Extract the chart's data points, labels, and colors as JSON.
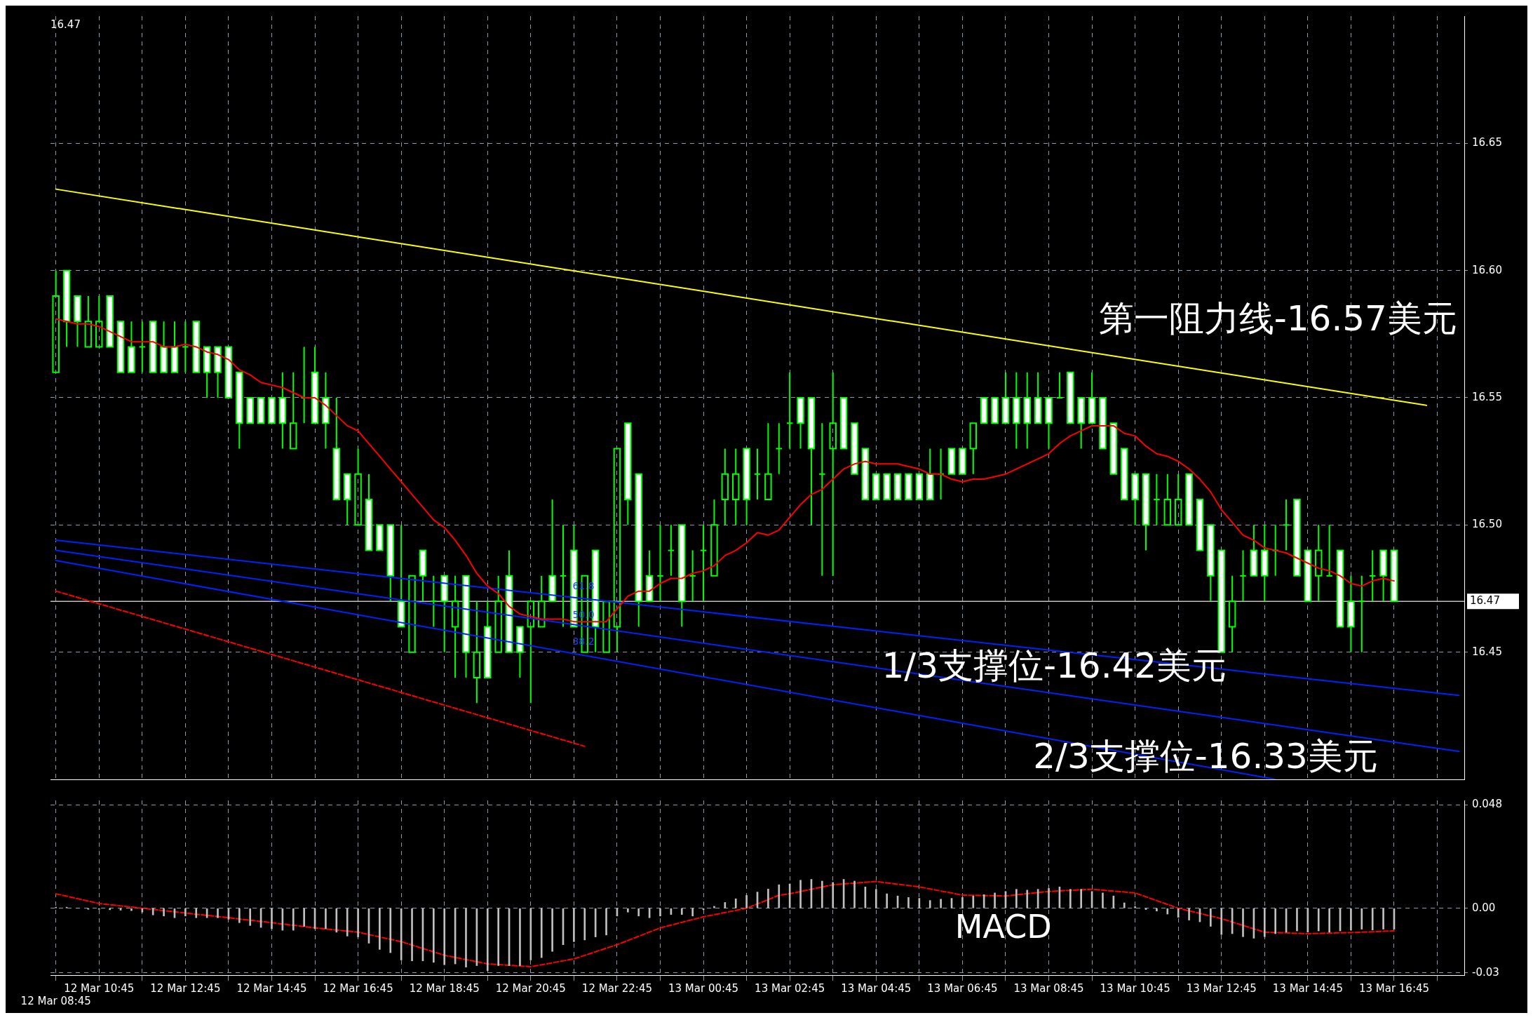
{
  "chart_data": [
    {
      "type": "candlestick",
      "color": "#00ff00",
      "tick_labels": "y",
      "grid": true,
      "categories": [
        null,
        null,
        null,
        null,
        null,
        null,
        null,
        null,
        null,
        null,
        null,
        null,
        null,
        null,
        null,
        null,
        null,
        null,
        null,
        null,
        null,
        null,
        null,
        null,
        null,
        null,
        null,
        null,
        null,
        null,
        null,
        null,
        null,
        null,
        null,
        null,
        null,
        null,
        null,
        null,
        null,
        null,
        null,
        null,
        null,
        null,
        null,
        null,
        null,
        null,
        null,
        null,
        null,
        null,
        null,
        null,
        null,
        null,
        null,
        null,
        null,
        null,
        null,
        null,
        null,
        null,
        null,
        null,
        null,
        null,
        null,
        null,
        null,
        null,
        null,
        null,
        null,
        null,
        null,
        null,
        null,
        null,
        null,
        null,
        null,
        null,
        null,
        null,
        null,
        null,
        null,
        null,
        null,
        null,
        null,
        null,
        null,
        null,
        null,
        null,
        null,
        null,
        null,
        null,
        null,
        null,
        null,
        null,
        null,
        null,
        null,
        null,
        null,
        null,
        null,
        null,
        null,
        null,
        null,
        null,
        null,
        null,
        null,
        null,
        null,
        null,
        null,
        null,
        null,
        null,
        null
      ],
      "colors": [
        "#00ff00",
        "#ffffff",
        "#ffffff",
        "#00ff00",
        "#00ff00",
        "#ffffff",
        "#ffffff",
        "#ffffff",
        "#00ff00",
        "#ffffff",
        "#ffffff",
        "#ffffff",
        "#00ff00",
        "#ffffff",
        "#ffffff",
        "#ffffff",
        "#ffffff",
        "#ffffff",
        "#ffffff",
        "#ffffff",
        "#ffffff",
        "#ffffff",
        "#00ff00",
        "#00ff00",
        "#ffffff",
        "#ffffff",
        "#ffffff",
        "#ffffff",
        "#00ff00",
        "#ffffff",
        "#ffffff",
        "#ffffff",
        "#ffffff",
        "#00ff00",
        "#ffffff",
        "#00ff00",
        "#ffffff",
        "#00ff00",
        "#ffffff",
        "#00ff00",
        "#ffffff",
        "#00ff00",
        "#ffffff",
        "#ffffff",
        "#00ff00",
        "#00ff00",
        "#ffffff",
        "#00ff00",
        "#ffffff",
        "#00ff00",
        "#ffffff",
        "#00ff00",
        "#00ff00",
        "#ffffff",
        "#ffffff",
        "#ffffff",
        "#00ff00",
        "#00ff00",
        "#ffffff",
        "#00ff00",
        "#00ff00",
        "#00ff00",
        "#00ff00",
        "#00ff00",
        "#ffffff",
        "#00ff00",
        "#00ff00",
        "#00ff00",
        "#00ff00",
        "#ffffff",
        "#ffffff",
        "#00ff00",
        "#00ff00",
        "#ffffff",
        "#ffffff",
        "#ffffff",
        "#ffffff",
        "#ffffff",
        "#ffffff",
        "#ffffff",
        "#ffffff",
        "#ffffff",
        "#00ff00",
        "#ffffff",
        "#ffffff",
        "#00ff00",
        "#ffffff",
        "#ffffff",
        "#ffffff",
        "#ffffff",
        "#ffffff",
        "#ffffff",
        "#ffffff",
        "#00ff00",
        "#ffffff",
        "#ffffff",
        "#ffffff",
        "#ffffff",
        "#ffffff",
        "#ffffff",
        "#ffffff",
        "#ffffff",
        "#00ff00",
        "#00ff00",
        "#00ff00",
        "#ffffff",
        "#ffffff",
        "#ffffff",
        "#ffffff",
        "#00ff00",
        "#00ff00",
        "#ffffff",
        "#ffffff",
        "#00ff00",
        "#00ff00",
        "#ffffff",
        "#ffffff",
        "#00ff00",
        "#00ff00",
        "#ffffff",
        "#ffffff",
        "#00ff00",
        "#00ff00",
        "#ffffff",
        "#ffffff",
        null,
        null,
        null,
        null,
        null,
        null
      ],
      "ohlc": [
        [
          16.56,
          16.6,
          16.56,
          16.59
        ],
        [
          16.6,
          16.6,
          16.57,
          16.58
        ],
        [
          16.59,
          16.59,
          16.57,
          16.58
        ],
        [
          16.57,
          16.59,
          16.57,
          16.58
        ],
        [
          16.57,
          16.59,
          16.57,
          16.58
        ],
        [
          16.59,
          16.59,
          16.57,
          16.57
        ],
        [
          16.58,
          16.58,
          16.56,
          16.56
        ],
        [
          16.57,
          16.58,
          16.56,
          16.56
        ],
        [
          16.57,
          16.58,
          16.56,
          16.57
        ],
        [
          16.58,
          16.58,
          16.56,
          16.56
        ],
        [
          16.57,
          16.58,
          16.56,
          16.56
        ],
        [
          16.57,
          16.58,
          16.56,
          16.56
        ],
        [
          16.57,
          16.58,
          16.56,
          16.57
        ],
        [
          16.58,
          16.58,
          16.56,
          16.56
        ],
        [
          16.57,
          16.57,
          16.55,
          16.56
        ],
        [
          16.57,
          16.57,
          16.55,
          16.56
        ],
        [
          16.57,
          16.57,
          16.55,
          16.55
        ],
        [
          16.56,
          16.56,
          16.53,
          16.54
        ],
        [
          16.55,
          16.55,
          16.54,
          16.54
        ],
        [
          16.55,
          16.55,
          16.54,
          16.54
        ],
        [
          16.55,
          16.55,
          16.54,
          16.54
        ],
        [
          16.55,
          16.56,
          16.53,
          16.54
        ],
        [
          16.53,
          16.56,
          16.53,
          16.54
        ],
        [
          16.55,
          16.57,
          16.54,
          16.55
        ],
        [
          16.56,
          16.57,
          16.54,
          16.54
        ],
        [
          16.55,
          16.56,
          16.53,
          16.54
        ],
        [
          16.53,
          16.55,
          16.51,
          16.51
        ],
        [
          16.52,
          16.52,
          16.5,
          16.51
        ],
        [
          16.5,
          16.53,
          16.5,
          16.52
        ],
        [
          16.51,
          16.52,
          16.49,
          16.49
        ],
        [
          16.5,
          16.5,
          16.49,
          16.49
        ],
        [
          16.5,
          16.5,
          16.47,
          16.48
        ],
        [
          16.47,
          16.5,
          16.46,
          16.46
        ],
        [
          16.45,
          16.48,
          16.45,
          16.48
        ],
        [
          16.49,
          16.49,
          16.47,
          16.48
        ],
        [
          16.47,
          16.48,
          16.46,
          16.47
        ],
        [
          16.48,
          16.48,
          16.45,
          16.47
        ],
        [
          16.46,
          16.48,
          16.44,
          16.47
        ],
        [
          16.48,
          16.48,
          16.44,
          16.45
        ],
        [
          16.44,
          16.47,
          16.43,
          16.45
        ],
        [
          16.46,
          16.47,
          16.44,
          16.44
        ],
        [
          16.45,
          16.48,
          16.45,
          16.47
        ],
        [
          16.48,
          16.49,
          16.45,
          16.45
        ],
        [
          16.46,
          16.46,
          16.44,
          16.45
        ],
        [
          16.46,
          16.47,
          16.43,
          16.47
        ],
        [
          16.46,
          16.48,
          16.46,
          16.47
        ],
        [
          16.48,
          16.51,
          16.47,
          16.47
        ],
        [
          16.48,
          16.5,
          16.46,
          16.48
        ],
        [
          16.49,
          16.5,
          16.46,
          16.46
        ],
        [
          16.45,
          16.48,
          16.45,
          16.48
        ],
        [
          16.49,
          16.49,
          16.45,
          16.46
        ],
        [
          16.45,
          16.47,
          16.45,
          16.47
        ],
        [
          16.46,
          16.53,
          16.45,
          16.53
        ],
        [
          16.54,
          16.54,
          16.5,
          16.51
        ],
        [
          16.52,
          16.52,
          16.46,
          16.47
        ],
        [
          16.48,
          16.49,
          16.47,
          16.47
        ],
        [
          16.48,
          16.5,
          16.47,
          16.48
        ],
        [
          16.49,
          16.5,
          16.48,
          16.49
        ],
        [
          16.5,
          16.5,
          16.46,
          16.47
        ],
        [
          16.48,
          16.49,
          16.47,
          16.48
        ],
        [
          16.49,
          16.5,
          16.47,
          16.49
        ],
        [
          16.48,
          16.51,
          16.48,
          16.5
        ],
        [
          16.51,
          16.53,
          16.5,
          16.52
        ],
        [
          16.51,
          16.53,
          16.5,
          16.52
        ],
        [
          16.53,
          16.53,
          16.5,
          16.51
        ],
        [
          16.52,
          16.53,
          16.51,
          16.52
        ],
        [
          16.51,
          16.54,
          16.51,
          16.52
        ],
        [
          16.53,
          16.54,
          16.52,
          16.53
        ],
        [
          16.54,
          16.56,
          16.53,
          16.54
        ],
        [
          16.55,
          16.55,
          16.53,
          16.54
        ],
        [
          16.55,
          16.55,
          16.5,
          16.53
        ],
        [
          16.52,
          16.54,
          16.48,
          16.52
        ],
        [
          16.53,
          16.56,
          16.48,
          16.54
        ],
        [
          16.55,
          16.55,
          16.53,
          16.53
        ],
        [
          16.54,
          16.54,
          16.52,
          16.52
        ],
        [
          16.53,
          16.53,
          16.51,
          16.51
        ],
        [
          16.52,
          16.52,
          16.51,
          16.51
        ],
        [
          16.52,
          16.52,
          16.51,
          16.51
        ],
        [
          16.52,
          16.52,
          16.51,
          16.51
        ],
        [
          16.52,
          16.52,
          16.51,
          16.51
        ],
        [
          16.52,
          16.52,
          16.51,
          16.51
        ],
        [
          16.52,
          16.53,
          16.51,
          16.51
        ],
        [
          16.52,
          16.53,
          16.51,
          16.52
        ],
        [
          16.53,
          16.53,
          16.52,
          16.52
        ],
        [
          16.53,
          16.53,
          16.52,
          16.52
        ],
        [
          16.53,
          16.54,
          16.52,
          16.54
        ],
        [
          16.55,
          16.55,
          16.54,
          16.54
        ],
        [
          16.55,
          16.55,
          16.54,
          16.54
        ],
        [
          16.55,
          16.56,
          16.54,
          16.54
        ],
        [
          16.55,
          16.56,
          16.53,
          16.54
        ],
        [
          16.55,
          16.56,
          16.53,
          16.54
        ],
        [
          16.55,
          16.56,
          16.54,
          16.54
        ],
        [
          16.55,
          16.55,
          16.53,
          16.54
        ],
        [
          16.55,
          16.56,
          16.55,
          16.55
        ],
        [
          16.56,
          16.56,
          16.54,
          16.54
        ],
        [
          16.55,
          16.55,
          16.53,
          16.54
        ],
        [
          16.55,
          16.56,
          16.54,
          16.54
        ],
        [
          16.55,
          16.55,
          16.53,
          16.53
        ],
        [
          16.54,
          16.54,
          16.52,
          16.52
        ],
        [
          16.53,
          16.53,
          16.51,
          16.51
        ],
        [
          16.52,
          16.52,
          16.5,
          16.51
        ],
        [
          16.52,
          16.52,
          16.49,
          16.5
        ],
        [
          16.51,
          16.52,
          16.5,
          16.51
        ],
        [
          16.5,
          16.52,
          16.5,
          16.51
        ],
        [
          16.5,
          16.52,
          16.5,
          16.51
        ],
        [
          16.52,
          16.52,
          16.5,
          16.5
        ],
        [
          16.51,
          16.51,
          16.49,
          16.49
        ],
        [
          16.5,
          16.5,
          16.47,
          16.48
        ],
        [
          16.49,
          16.49,
          16.45,
          16.45
        ],
        [
          16.46,
          16.48,
          16.45,
          16.47
        ],
        [
          16.48,
          16.49,
          16.47,
          16.48
        ],
        [
          16.49,
          16.5,
          16.48,
          16.48
        ],
        [
          16.49,
          16.5,
          16.47,
          16.48
        ],
        [
          16.49,
          16.5,
          16.48,
          16.49
        ],
        [
          16.5,
          16.51,
          16.49,
          16.5
        ],
        [
          16.51,
          16.51,
          16.48,
          16.48
        ],
        [
          16.49,
          16.49,
          16.47,
          16.47
        ],
        [
          16.48,
          16.5,
          16.47,
          16.49
        ],
        [
          16.48,
          16.5,
          16.48,
          16.48
        ],
        [
          16.49,
          16.49,
          16.46,
          16.46
        ],
        [
          16.47,
          16.48,
          16.45,
          16.46
        ],
        [
          16.47,
          16.48,
          16.45,
          16.47
        ],
        [
          16.48,
          16.49,
          16.47,
          16.48
        ],
        [
          16.49,
          16.49,
          16.47,
          16.48
        ],
        [
          16.49,
          16.49,
          16.47,
          16.47
        ],
        null,
        null,
        null,
        null,
        null,
        null
      ],
      "series": [
        {
          "type": "line",
          "color": "#ff0000",
          "values": [
            16.581,
            16.58,
            16.579,
            16.579,
            16.578,
            16.576,
            16.574,
            16.572,
            16.572,
            16.572,
            16.57,
            16.57,
            16.571,
            16.57,
            16.568,
            16.567,
            16.565,
            16.561,
            16.559,
            16.556,
            16.555,
            16.554,
            16.552,
            16.55,
            16.55,
            16.547,
            16.543,
            16.539,
            16.537,
            16.532,
            16.527,
            16.522,
            16.517,
            16.512,
            16.507,
            16.502,
            16.499,
            16.494,
            16.488,
            16.481,
            16.476,
            16.473,
            16.468,
            16.465,
            16.464,
            16.463,
            16.463,
            16.463,
            16.462,
            16.462,
            16.462,
            16.462,
            16.467,
            16.472,
            16.474,
            16.474,
            16.477,
            16.479,
            16.479,
            16.481,
            16.482,
            16.484,
            16.488,
            16.49,
            16.493,
            16.497,
            16.496,
            16.498,
            16.503,
            16.508,
            16.512,
            16.514,
            16.518,
            16.522,
            16.524,
            16.525,
            16.524,
            16.524,
            16.524,
            16.523,
            16.522,
            16.52,
            16.52,
            16.518,
            16.517,
            16.518,
            16.518,
            16.519,
            16.52,
            16.522,
            16.524,
            16.526,
            16.528,
            16.532,
            16.535,
            16.537,
            16.539,
            16.539,
            16.539,
            16.536,
            16.535,
            16.531,
            16.528,
            16.527,
            16.525,
            16.522,
            16.518,
            16.513,
            16.506,
            16.501,
            16.496,
            16.494,
            16.491,
            16.49,
            16.489,
            16.487,
            16.485,
            16.483,
            16.482,
            16.48,
            16.477,
            16.476,
            16.478,
            16.479,
            16.478,
            null,
            null,
            null,
            null,
            null,
            null
          ]
        },
        {
          "type": "line",
          "color": "#ffff00",
          "values": [
            16.632,
            null,
            null,
            null,
            null,
            null,
            null,
            null,
            null,
            null,
            null,
            null,
            null,
            null,
            null,
            null,
            null,
            null,
            null,
            null,
            null,
            null,
            null,
            null,
            null,
            null,
            null,
            null,
            null,
            null,
            null,
            null,
            null,
            null,
            null,
            null,
            null,
            null,
            null,
            null,
            null,
            null,
            null,
            null,
            null,
            null,
            null,
            null,
            null,
            null,
            null,
            null,
            null,
            null,
            null,
            null,
            null,
            null,
            null,
            null,
            null,
            null,
            null,
            null,
            null,
            null,
            null,
            null,
            null,
            null,
            null,
            null,
            null,
            null,
            null,
            null,
            null,
            null,
            null,
            null,
            null,
            null,
            null,
            null,
            null,
            null,
            null,
            null,
            null,
            null,
            null,
            null,
            null,
            null,
            null,
            null,
            null,
            null,
            null,
            null,
            null,
            null,
            null,
            null,
            null,
            null,
            null,
            null,
            null,
            null,
            null,
            null,
            null,
            null,
            null,
            null,
            null,
            null,
            null,
            null,
            null,
            null,
            null,
            null,
            null,
            null,
            null,
            16.547,
            null,
            null,
            null
          ]
        },
        {
          "type": "line",
          "color": "#0022ff",
          "values": [
            16.494,
            null,
            null,
            null,
            null,
            null,
            null,
            null,
            null,
            null,
            null,
            null,
            null,
            null,
            null,
            null,
            null,
            null,
            null,
            null,
            null,
            null,
            null,
            null,
            null,
            null,
            null,
            null,
            null,
            null,
            null,
            null,
            null,
            null,
            null,
            null,
            null,
            null,
            null,
            null,
            null,
            null,
            null,
            null,
            null,
            null,
            null,
            null,
            null,
            null,
            null,
            null,
            null,
            null,
            null,
            null,
            null,
            null,
            null,
            null,
            null,
            null,
            null,
            null,
            null,
            null,
            null,
            null,
            null,
            null,
            null,
            null,
            null,
            null,
            null,
            null,
            null,
            null,
            null,
            null,
            null,
            null,
            null,
            null,
            null,
            null,
            null,
            null,
            null,
            null,
            null,
            null,
            null,
            null,
            null,
            null,
            null,
            null,
            null,
            null,
            null,
            null,
            null,
            null,
            null,
            null,
            null,
            null,
            null,
            null,
            null,
            null,
            null,
            null,
            null,
            null,
            null,
            null,
            null,
            null,
            null,
            null,
            null,
            null,
            null,
            null,
            null,
            null,
            null,
            null,
            16.433
          ]
        },
        {
          "type": "line",
          "color": "#0022ff",
          "values": [
            16.49,
            null,
            null,
            null,
            null,
            null,
            null,
            null,
            null,
            null,
            null,
            null,
            null,
            null,
            null,
            null,
            null,
            null,
            null,
            null,
            null,
            null,
            null,
            null,
            null,
            null,
            null,
            null,
            null,
            null,
            null,
            null,
            null,
            null,
            null,
            null,
            null,
            null,
            null,
            null,
            null,
            null,
            null,
            null,
            null,
            null,
            null,
            null,
            null,
            null,
            null,
            null,
            null,
            null,
            null,
            null,
            null,
            null,
            null,
            null,
            null,
            null,
            null,
            null,
            null,
            null,
            null,
            null,
            null,
            null,
            null,
            null,
            null,
            null,
            null,
            null,
            null,
            null,
            null,
            null,
            null,
            null,
            null,
            null,
            null,
            null,
            null,
            null,
            null,
            null,
            null,
            null,
            null,
            null,
            null,
            null,
            null,
            null,
            null,
            null,
            null,
            null,
            null,
            null,
            null,
            null,
            null,
            null,
            null,
            null,
            null,
            null,
            null,
            null,
            null,
            null,
            null,
            null,
            null,
            null,
            null,
            null,
            null,
            null,
            null,
            null,
            null,
            null,
            null,
            null,
            16.411
          ]
        },
        {
          "type": "line",
          "color": "#0022ff",
          "values": [
            16.486,
            null,
            null,
            null,
            null,
            null,
            null,
            null,
            null,
            null,
            null,
            null,
            null,
            null,
            null,
            null,
            null,
            null,
            null,
            null,
            null,
            null,
            null,
            null,
            null,
            null,
            null,
            null,
            null,
            null,
            null,
            null,
            null,
            null,
            null,
            null,
            null,
            null,
            null,
            null,
            null,
            null,
            null,
            null,
            null,
            null,
            null,
            null,
            null,
            null,
            null,
            null,
            null,
            null,
            null,
            null,
            null,
            null,
            null,
            null,
            null,
            null,
            null,
            null,
            null,
            null,
            null,
            null,
            null,
            null,
            null,
            null,
            null,
            null,
            null,
            null,
            null,
            null,
            null,
            null,
            null,
            null,
            null,
            null,
            null,
            null,
            null,
            null,
            null,
            null,
            null,
            null,
            null,
            null,
            null,
            null,
            null,
            null,
            null,
            null,
            null,
            null,
            null,
            null,
            null,
            null,
            null,
            null,
            null,
            null,
            null,
            null,
            null,
            16.4,
            null,
            null,
            null,
            null,
            null,
            null,
            null,
            null,
            null,
            null,
            null,
            null,
            null,
            null,
            null,
            null,
            null
          ]
        },
        {
          "type": "line",
          "color": "#ff0000",
          "line_style": "dashed",
          "values": [
            16.474,
            null,
            null,
            null,
            null,
            null,
            null,
            null,
            null,
            null,
            null,
            null,
            null,
            null,
            null,
            null,
            null,
            null,
            null,
            null,
            null,
            null,
            null,
            null,
            null,
            null,
            null,
            null,
            null,
            null,
            null,
            null,
            null,
            null,
            null,
            null,
            null,
            null,
            null,
            null,
            null,
            null,
            null,
            null,
            null,
            null,
            null,
            null,
            null,
            16.413,
            null,
            null,
            null,
            null,
            null,
            null,
            null,
            null,
            null,
            null,
            null,
            null,
            null,
            null,
            null,
            null,
            null,
            null,
            null,
            null,
            null,
            null,
            null,
            null,
            null,
            null,
            null,
            null,
            null,
            null,
            null,
            null,
            null,
            null,
            null,
            null,
            null,
            null,
            null,
            null,
            null,
            null,
            null,
            null,
            null,
            null,
            null,
            null,
            null,
            null,
            null,
            null,
            null,
            null,
            null,
            null,
            null,
            null,
            null,
            null,
            null,
            null,
            null,
            null,
            null,
            null,
            null,
            null,
            null,
            null,
            null,
            null,
            null,
            null,
            null,
            null,
            null,
            null,
            null,
            null,
            null
          ]
        }
      ],
      "ylim": [
        16.4,
        16.7
      ],
      "yticks": [
        16.45,
        {
          "value": 16.5,
          "label": "16.50"
        },
        16.55,
        {
          "value": 16.6,
          "label": "16.60"
        },
        16.65
      ],
      "ref_lines": [
        {
          "axis": "y",
          "value": 16.47,
          "label": "16.47",
          "color": "#c0c0c0"
        }
      ],
      "annotations": [
        "16.47",
        "第一阻力线-16.57美元",
        "1/3支撑位-16.42美元",
        "2/3支撑位-16.33美元",
        "61.8",
        "50.0",
        "38.2"
      ]
    },
    {
      "type": "bar",
      "grid": true,
      "categories": [
        "12 Mar 08:45",
        null,
        null,
        null,
        "12 Mar 10:45",
        null,
        null,
        null,
        null,
        null,
        null,
        null,
        "12 Mar 12:45",
        null,
        null,
        null,
        null,
        null,
        null,
        null,
        "12 Mar 14:45",
        null,
        null,
        null,
        null,
        null,
        null,
        null,
        "12 Mar 16:45",
        null,
        null,
        null,
        null,
        null,
        null,
        null,
        "12 Mar 18:45",
        null,
        null,
        null,
        null,
        null,
        null,
        null,
        "12 Mar 20:45",
        null,
        null,
        null,
        null,
        null,
        null,
        null,
        "12 Mar 22:45",
        null,
        null,
        null,
        null,
        null,
        null,
        null,
        "13 Mar 00:45",
        null,
        null,
        null,
        null,
        null,
        null,
        null,
        "13 Mar 02:45",
        null,
        null,
        null,
        null,
        null,
        null,
        null,
        "13 Mar 04:45",
        null,
        null,
        null,
        null,
        null,
        null,
        null,
        "13 Mar 06:45",
        null,
        null,
        null,
        null,
        null,
        null,
        null,
        "13 Mar 08:45",
        null,
        null,
        null,
        null,
        null,
        null,
        null,
        "13 Mar 10:45",
        null,
        null,
        null,
        null,
        null,
        null,
        null,
        "13 Mar 12:45",
        null,
        null,
        null,
        null,
        null,
        null,
        null,
        "13 Mar 14:45",
        null,
        null,
        null,
        null,
        null,
        null,
        null,
        "13 Mar 16:45",
        null,
        null,
        null,
        null,
        null,
        null
      ],
      "series": [
        {
          "color": "#c0c0c0",
          "values": [
            0.0005,
            0.0005,
            0,
            -0.0005,
            -0.0005,
            -0.0007,
            -0.0009,
            -0.0011,
            -0.0018,
            -0.0031,
            -0.0036,
            -0.0044,
            -0.0036,
            -0.0044,
            -0.0044,
            -0.0044,
            -0.0051,
            -0.0067,
            -0.008,
            -0.0089,
            -0.0095,
            -0.0102,
            -0.0102,
            -0.0084,
            -0.0095,
            -0.0095,
            -0.0111,
            -0.0129,
            -0.0133,
            -0.0162,
            -0.0191,
            -0.0206,
            -0.024,
            -0.0244,
            -0.0244,
            -0.0251,
            -0.0262,
            -0.0258,
            -0.0273,
            -0.0266,
            -0.0289,
            -0.0266,
            -0.0266,
            -0.0266,
            -0.024,
            -0.0229,
            -0.02,
            -0.0169,
            -0.0155,
            -0.0147,
            -0.0133,
            -0.0124,
            -0.0036,
            -0.0018,
            -0.0036,
            -0.0044,
            -0.0036,
            -0.0029,
            -0.0029,
            -0.0036,
            -0.0007,
            0.0009,
            0.0027,
            0.0044,
            0.006,
            0.0075,
            0.0089,
            0.0109,
            0.0113,
            0.013,
            0.0134,
            0.0126,
            0.012,
            0.0134,
            0.0126,
            0.0099,
            0.0088,
            0.0067,
            0.0057,
            0.005,
            0.0046,
            0.0036,
            0.0042,
            0.0046,
            0.005,
            0.0057,
            0.0063,
            0.0071,
            0.0078,
            0.0088,
            0.0084,
            0.0088,
            0.0092,
            0.0099,
            0.0088,
            0.0088,
            0.0078,
            0.0071,
            0.0057,
            0.0025,
            0.0008,
            -0.0006,
            -0.0013,
            -0.0027,
            -0.0042,
            -0.0055,
            -0.0063,
            -0.0084,
            -0.0122,
            -0.0118,
            -0.0132,
            -0.0139,
            -0.0132,
            -0.0118,
            -0.0111,
            -0.0105,
            -0.0111,
            -0.0105,
            -0.0111,
            -0.0105,
            -0.0101,
            -0.0097,
            -0.0101,
            -0.0097,
            -0.0097,
            null,
            null,
            null,
            null,
            null,
            null
          ]
        },
        {
          "type": "line",
          "color": "#ff0000",
          "line_style": "dashed",
          "values": [
            0.0067,
            null,
            null,
            null,
            0.0022,
            null,
            null,
            null,
            0,
            null,
            null,
            null,
            -0.0022,
            null,
            null,
            null,
            -0.0044,
            null,
            null,
            null,
            -0.0067,
            null,
            null,
            null,
            -0.0091,
            null,
            null,
            null,
            -0.0111,
            null,
            null,
            null,
            -0.0155,
            null,
            null,
            null,
            -0.0218,
            null,
            null,
            null,
            -0.0258,
            null,
            null,
            null,
            -0.0271,
            null,
            null,
            null,
            -0.0235,
            null,
            null,
            null,
            -0.0169,
            null,
            null,
            null,
            -0.0091,
            null,
            null,
            null,
            -0.004,
            null,
            null,
            null,
            0,
            null,
            null,
            0.006,
            0.0067,
            null,
            null,
            null,
            0.0109,
            null,
            null,
            null,
            0.0124,
            null,
            null,
            null,
            0.0099,
            null,
            null,
            null,
            0.0061,
            null,
            null,
            null,
            0.0057,
            null,
            null,
            null,
            0.0078,
            null,
            null,
            null,
            0.0088,
            null,
            null,
            null,
            0.0071,
            null,
            null,
            null,
            0,
            null,
            null,
            null,
            -0.0048,
            null,
            null,
            null,
            -0.0111,
            null,
            null,
            null,
            -0.0118,
            null,
            null,
            null,
            -0.0113,
            null,
            null,
            null,
            -0.0105,
            null,
            null,
            null,
            null,
            null,
            null
          ]
        }
      ],
      "ylim": [
        -0.031,
        0.05
      ],
      "yticks": [
        0.048,
        {
          "value": 0,
          "label": "0.00"
        },
        -0.03
      ],
      "annotations": [
        "MACD"
      ]
    }
  ]
}
